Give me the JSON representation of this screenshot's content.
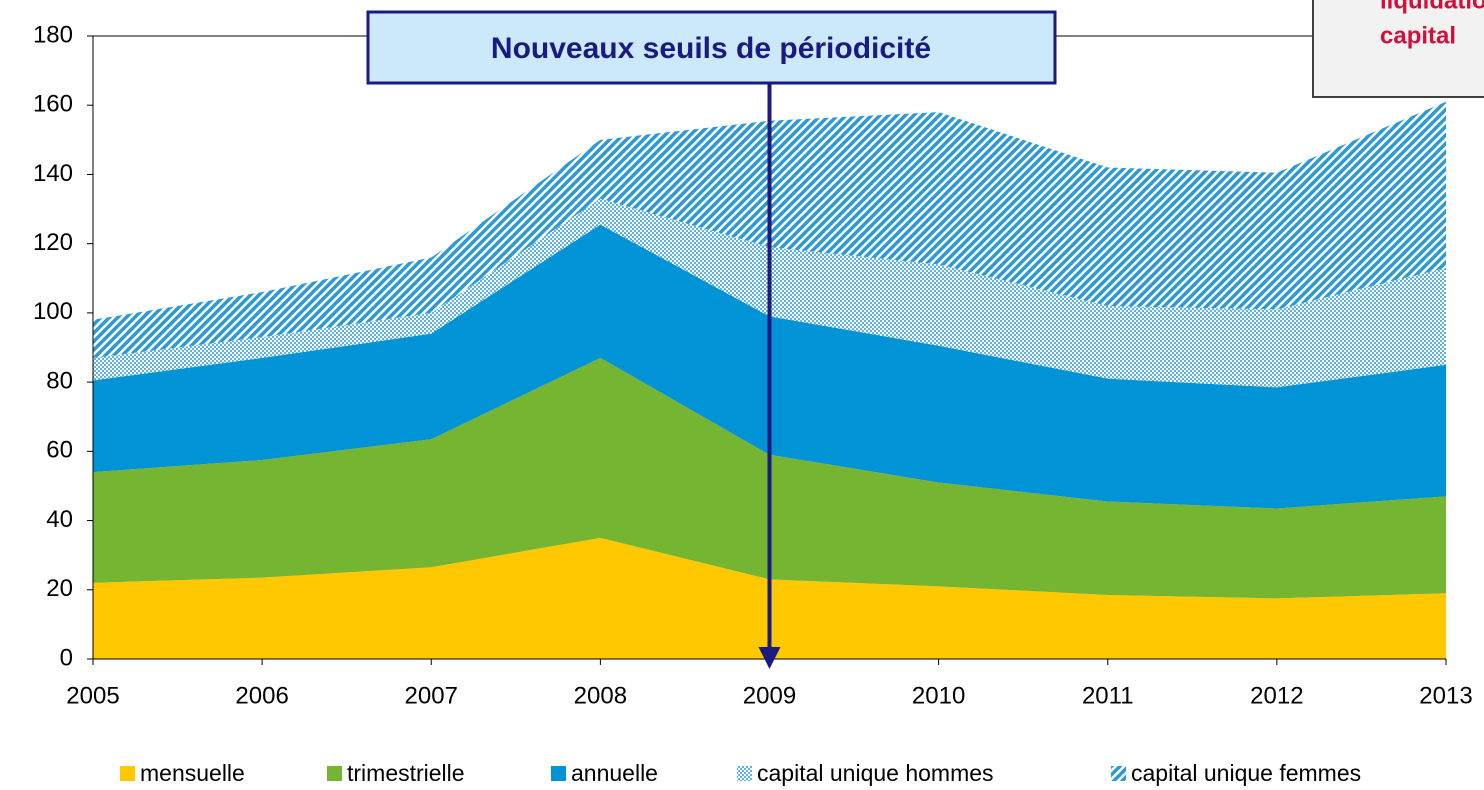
{
  "chart_data": {
    "type": "stacked_area",
    "x": [
      2005,
      2006,
      2007,
      2008,
      2009,
      2010,
      2011,
      2012,
      2013
    ],
    "xlim": [
      2005,
      2013
    ],
    "xticks": [
      2005,
      2006,
      2007,
      2008,
      2009,
      2010,
      2011,
      2012,
      2013
    ],
    "ylim": [
      0,
      180
    ],
    "yticks": [
      0,
      20,
      40,
      60,
      80,
      100,
      120,
      140,
      160,
      180
    ],
    "series": [
      {
        "name": "mensuelle",
        "color": "#ffc800",
        "pattern": "solid",
        "values": [
          22,
          23.5,
          26.5,
          35,
          23,
          21,
          18.5,
          17.5,
          19
        ]
      },
      {
        "name": "trimestrielle",
        "color": "#76b531",
        "pattern": "solid",
        "values": [
          32,
          34,
          37,
          52,
          36,
          30,
          27,
          26,
          28
        ]
      },
      {
        "name": "annuelle",
        "color": "#0093d6",
        "pattern": "solid",
        "values": [
          26.5,
          29.5,
          30.5,
          38.5,
          40,
          39.5,
          35.5,
          35,
          38
        ]
      },
      {
        "name": "capital unique hommes",
        "color": "#5bb4e5",
        "pattern": "dots",
        "values": [
          6.5,
          6,
          6,
          7.5,
          20,
          23.5,
          21,
          22.5,
          28
        ]
      },
      {
        "name": "capital unique femmes",
        "color": "#2d9ad6",
        "pattern": "stripes",
        "values": [
          11,
          13,
          16,
          17,
          36.5,
          44,
          40,
          39.5,
          48
        ]
      }
    ],
    "annotations": [
      {
        "text": "Nouveaux seuils de périodicité",
        "x": 2009
      },
      {
        "lines": [
          "liquidation",
          "capital"
        ]
      }
    ],
    "legend": "bottom"
  }
}
